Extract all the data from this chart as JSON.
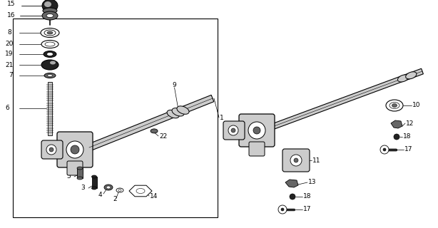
{
  "bg_color": "#ffffff",
  "fig_w": 6.14,
  "fig_h": 3.2,
  "dpi": 100,
  "gray_dark": "#222222",
  "gray_mid": "#666666",
  "gray_light": "#aaaaaa",
  "gray_lighter": "#cccccc",
  "black": "#000000",
  "white": "#ffffff"
}
